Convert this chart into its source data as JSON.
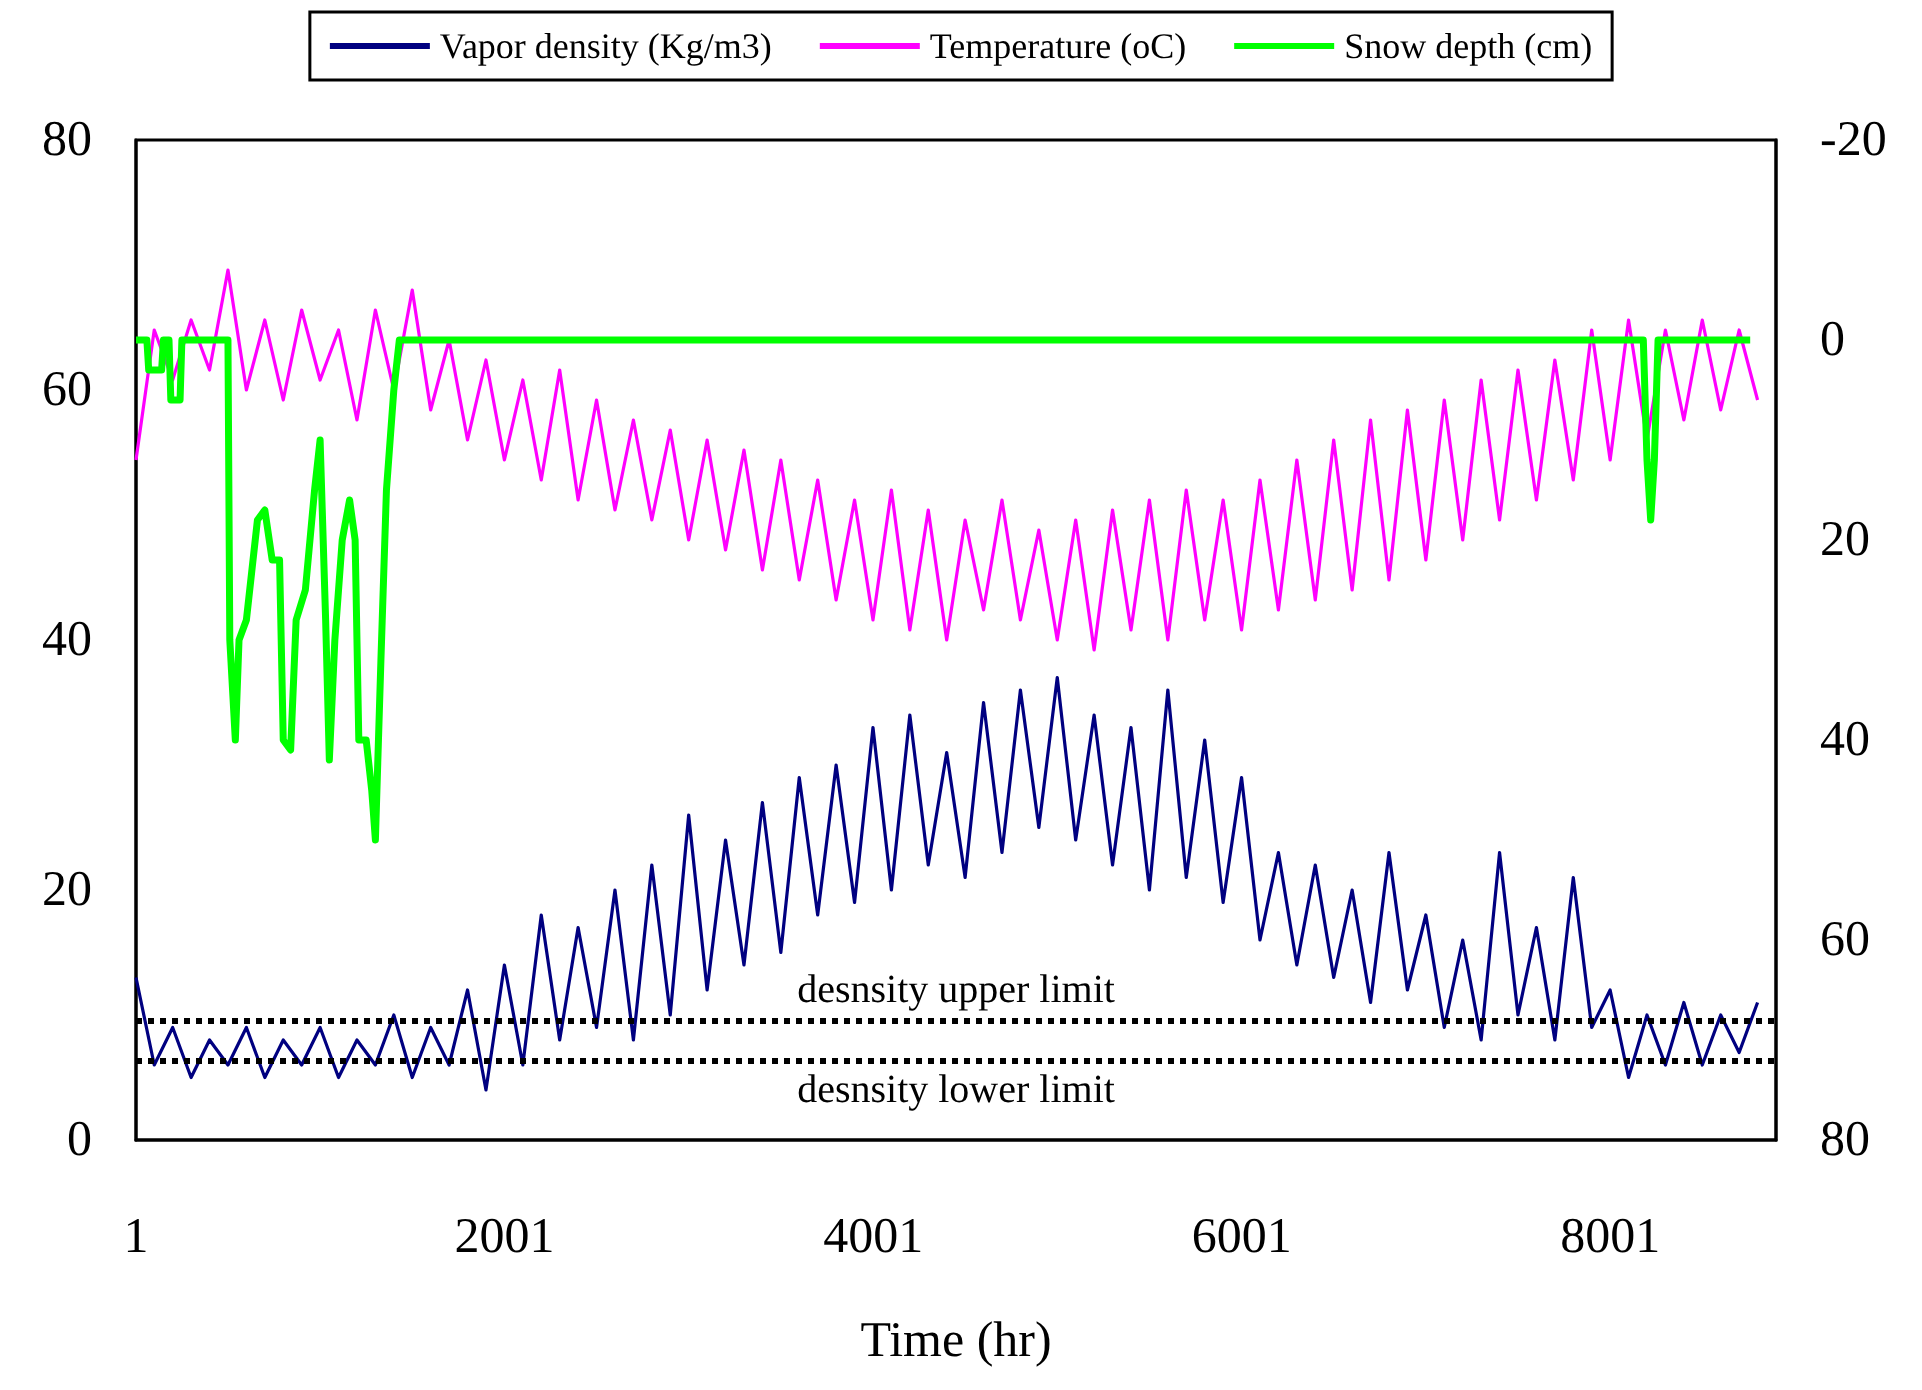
{
  "chart_data": {
    "type": "line",
    "xlabel": "Time (hr)",
    "x": [
      1,
      100,
      200,
      300,
      400,
      500,
      600,
      700,
      800,
      900,
      1000,
      1100,
      1200,
      1300,
      1400,
      1500,
      1600,
      1700,
      1800,
      1900,
      2000,
      2100,
      2200,
      2300,
      2400,
      2500,
      2600,
      2700,
      2800,
      2900,
      3000,
      3100,
      3200,
      3300,
      3400,
      3500,
      3600,
      3700,
      3800,
      3900,
      4000,
      4100,
      4200,
      4300,
      4400,
      4500,
      4600,
      4700,
      4800,
      4900,
      5000,
      5100,
      5200,
      5300,
      5400,
      5500,
      5600,
      5700,
      5800,
      5900,
      6000,
      6100,
      6200,
      6300,
      6400,
      6500,
      6600,
      6700,
      6800,
      6900,
      7000,
      7100,
      7200,
      7300,
      7400,
      7500,
      7600,
      7700,
      7800,
      7900,
      8000,
      8100,
      8200,
      8300,
      8400,
      8500,
      8600,
      8700,
      8800
    ],
    "series": [
      {
        "name": "Vapor density (Kg/m3)",
        "color": "#000080",
        "values": [
          13,
          6,
          9,
          5,
          8,
          6,
          9,
          5,
          8,
          6,
          9,
          5,
          8,
          6,
          10,
          5,
          9,
          6,
          12,
          4,
          14,
          6,
          18,
          8,
          17,
          9,
          20,
          8,
          22,
          10,
          26,
          12,
          24,
          14,
          27,
          15,
          29,
          18,
          30,
          19,
          33,
          20,
          34,
          22,
          31,
          21,
          35,
          23,
          36,
          25,
          37,
          24,
          34,
          22,
          33,
          20,
          36,
          21,
          32,
          19,
          29,
          16,
          23,
          14,
          22,
          13,
          20,
          11,
          23,
          12,
          18,
          9,
          16,
          8,
          23,
          10,
          17,
          8,
          21,
          9,
          12,
          5,
          10,
          6,
          11,
          6,
          10,
          7,
          11
        ]
      },
      {
        "name": "Temperature (oC)",
        "color": "#ff00ff",
        "axis": "y2",
        "values": [
          12,
          -1,
          4,
          -2,
          3,
          -7,
          5,
          -2,
          6,
          -3,
          4,
          -1,
          8,
          -3,
          5,
          -5,
          7,
          0,
          10,
          2,
          12,
          4,
          14,
          3,
          16,
          6,
          17,
          8,
          18,
          9,
          20,
          10,
          21,
          11,
          23,
          12,
          24,
          14,
          26,
          16,
          28,
          15,
          29,
          17,
          30,
          18,
          27,
          16,
          28,
          19,
          30,
          18,
          31,
          17,
          29,
          16,
          30,
          15,
          28,
          16,
          29,
          14,
          27,
          12,
          26,
          10,
          25,
          8,
          24,
          7,
          22,
          6,
          20,
          4,
          18,
          3,
          16,
          2,
          14,
          -1,
          12,
          -2,
          10,
          -1,
          8,
          -2,
          7,
          -1,
          6
        ]
      },
      {
        "name": "Snow depth (cm)",
        "color": "#00ff00",
        "axis": "y2",
        "x": [
          1,
          60,
          70,
          140,
          150,
          180,
          190,
          240,
          250,
          500,
          510,
          540,
          560,
          600,
          660,
          700,
          740,
          780,
          800,
          840,
          870,
          920,
          970,
          1000,
          1030,
          1050,
          1080,
          1120,
          1160,
          1190,
          1210,
          1250,
          1280,
          1300,
          1330,
          1360,
          1400,
          1430,
          8180,
          8200,
          8220,
          8240,
          8260,
          8760
        ],
        "values": [
          0,
          0,
          3,
          3,
          0,
          0,
          6,
          6,
          0,
          0,
          30,
          40,
          30,
          28,
          18,
          17,
          22,
          22,
          40,
          41,
          28,
          25,
          15,
          10,
          28,
          42,
          30,
          20,
          16,
          20,
          40,
          40,
          45,
          50,
          32,
          15,
          5,
          0,
          0,
          12,
          18,
          12,
          0,
          0
        ]
      }
    ],
    "xlim": [
      1,
      8900
    ],
    "xticks": [
      1,
      2001,
      4001,
      6001,
      8001
    ],
    "ylim": [
      0,
      80
    ],
    "yticks": [
      0,
      20,
      40,
      60,
      80
    ],
    "y2lim": [
      80,
      -20
    ],
    "y2ticks": [
      -20,
      0,
      20,
      40,
      60,
      80
    ],
    "ref_lines": [
      {
        "axis": "y",
        "value": 9.6,
        "label": "desnsity upper limit",
        "color": "#000000",
        "line_style": "dotted"
      },
      {
        "axis": "y",
        "value": 6.4,
        "label": "desnsity lower limit",
        "color": "#000000",
        "line_style": "dotted"
      }
    ],
    "legend": "top",
    "grid": false,
    "marker": "none",
    "line_style": "solid"
  }
}
